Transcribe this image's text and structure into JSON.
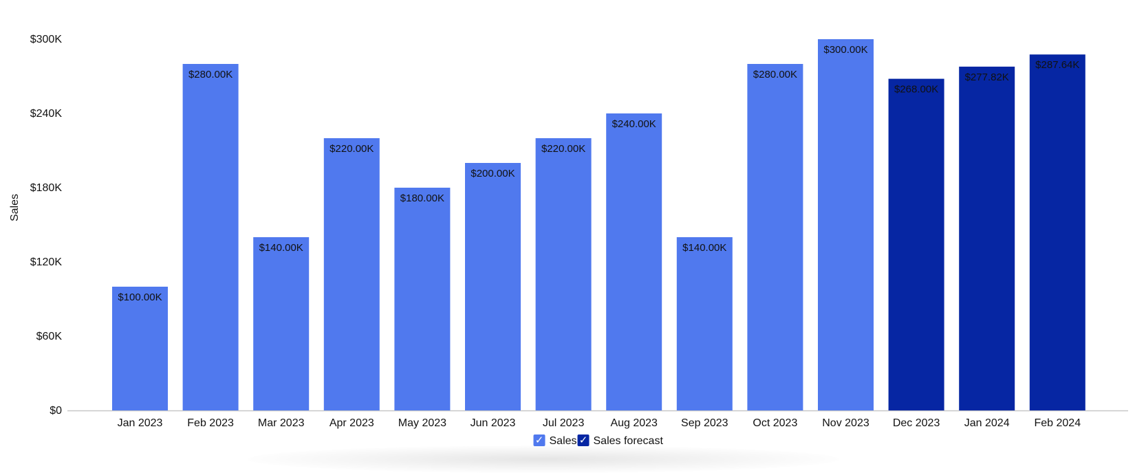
{
  "chart_data": {
    "type": "bar",
    "ylabel": "Sales",
    "ylim": [
      0,
      300000
    ],
    "yticks": [
      0,
      60000,
      120000,
      180000,
      240000,
      300000
    ],
    "ytick_labels": [
      "$0",
      "$60K",
      "$120K",
      "$180K",
      "$240K",
      "$300K"
    ],
    "categories": [
      "Jan 2023",
      "Feb 2023",
      "Mar 2023",
      "Apr 2023",
      "May 2023",
      "Jun 2023",
      "Jul 2023",
      "Aug 2023",
      "Sep 2023",
      "Oct 2023",
      "Nov 2023",
      "Dec 2023",
      "Jan 2024",
      "Feb 2024"
    ],
    "values": [
      100000,
      280000,
      140000,
      220000,
      180000,
      200000,
      220000,
      240000,
      140000,
      280000,
      300000,
      268000,
      277820,
      287640
    ],
    "value_labels": [
      "$100.00K",
      "$280.00K",
      "$140.00K",
      "$220.00K",
      "$180.00K",
      "$200.00K",
      "$220.00K",
      "$240.00K",
      "$140.00K",
      "$280.00K",
      "$300.00K",
      "$268.00K",
      "$277.82K",
      "$287.64K"
    ],
    "bar_series": [
      "Sales",
      "Sales",
      "Sales",
      "Sales",
      "Sales",
      "Sales",
      "Sales",
      "Sales",
      "Sales",
      "Sales",
      "Sales",
      "Sales forecast",
      "Sales forecast",
      "Sales forecast"
    ],
    "series": [
      {
        "name": "Sales",
        "color": "#5079EE",
        "checked": true
      },
      {
        "name": "Sales forecast",
        "color": "#0626A3",
        "checked": true
      }
    ],
    "grid": false,
    "legend_position": "bottom-center",
    "checkbox_glyph": "✓"
  }
}
